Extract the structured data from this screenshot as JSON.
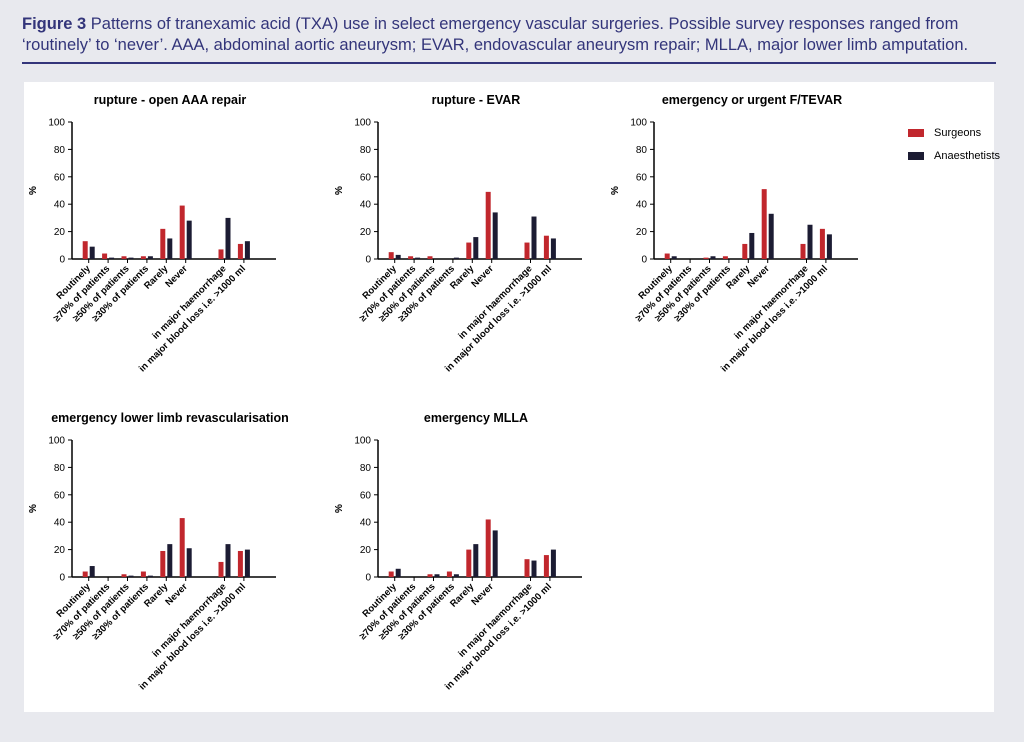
{
  "caption": {
    "figure_label": "Figure 3",
    "text": "Patterns of tranexamic acid (TXA) use in select emergency vascular surgeries. Possible survey responses ranged from ‘routinely’ to ‘never’. AAA, abdominal aortic aneurysm; EVAR, endovascular aneurysm repair; MLLA, major lower limb amputation."
  },
  "legend": [
    {
      "label": "Surgeons",
      "color": "#c1272d"
    },
    {
      "label": "Anaesthetists",
      "color": "#1c1c33"
    }
  ],
  "chart_data": [
    {
      "type": "bar",
      "title": "rupture - open AAA repair",
      "ylabel": "%",
      "ylim": [
        0,
        100
      ],
      "yticks": [
        0,
        20,
        40,
        60,
        80,
        100
      ],
      "categories": [
        "Routinely",
        "≥70% of patients",
        "≥50% of patients",
        "≥30% of patients",
        "Rarely",
        "Never",
        "",
        "in major haemorrhage",
        "in major blood loss i.e. >1000 ml"
      ],
      "series": [
        {
          "name": "Surgeons",
          "values": [
            13,
            4,
            2,
            2,
            22,
            39,
            null,
            7,
            11
          ]
        },
        {
          "name": "Anaesthetists",
          "values": [
            9,
            1,
            1,
            2,
            15,
            28,
            null,
            30,
            13
          ]
        }
      ]
    },
    {
      "type": "bar",
      "title": "rupture - EVAR",
      "ylabel": "%",
      "ylim": [
        0,
        100
      ],
      "yticks": [
        0,
        20,
        40,
        60,
        80,
        100
      ],
      "categories": [
        "Routinely",
        "≥70% of patients",
        "≥50% of patients",
        "≥30% of patients",
        "Rarely",
        "Never",
        "",
        "in major haemorrhage",
        "in major blood loss i.e. >1000 ml"
      ],
      "series": [
        {
          "name": "Surgeons",
          "values": [
            5,
            2,
            2,
            0,
            12,
            49,
            null,
            12,
            17
          ]
        },
        {
          "name": "Anaesthetists",
          "values": [
            3,
            1,
            0,
            1,
            16,
            34,
            null,
            31,
            15
          ]
        }
      ]
    },
    {
      "type": "bar",
      "title": "emergency or urgent F/TEVAR",
      "ylabel": "%",
      "ylim": [
        0,
        100
      ],
      "yticks": [
        0,
        20,
        40,
        60,
        80,
        100
      ],
      "categories": [
        "Routinely",
        "≥70% of patients",
        "≥50% of patients",
        "≥30% of patients",
        "Rarely",
        "Never",
        "",
        "in major haemorrhage",
        "in major blood loss i.e. >1000 ml"
      ],
      "series": [
        {
          "name": "Surgeons",
          "values": [
            4,
            0,
            1,
            2,
            11,
            51,
            null,
            11,
            22
          ]
        },
        {
          "name": "Anaesthetists",
          "values": [
            2,
            0,
            2,
            0,
            19,
            33,
            null,
            25,
            18
          ]
        }
      ]
    },
    {
      "type": "bar",
      "title": "emergency lower limb revascularisation",
      "ylabel": "%",
      "ylim": [
        0,
        100
      ],
      "yticks": [
        0,
        20,
        40,
        60,
        80,
        100
      ],
      "categories": [
        "Routinely",
        "≥70% of patients",
        "≥50% of patients",
        "≥30% of patients",
        "Rarely",
        "Never",
        "",
        "in major haemorrhage",
        "in major blood loss i.e. >1000 ml"
      ],
      "series": [
        {
          "name": "Surgeons",
          "values": [
            4,
            0,
            2,
            4,
            19,
            43,
            null,
            11,
            19
          ]
        },
        {
          "name": "Anaesthetists",
          "values": [
            8,
            0,
            1,
            1,
            24,
            21,
            null,
            24,
            20
          ]
        }
      ]
    },
    {
      "type": "bar",
      "title": "emergency MLLA",
      "ylabel": "%",
      "ylim": [
        0,
        100
      ],
      "yticks": [
        0,
        20,
        40,
        60,
        80,
        100
      ],
      "categories": [
        "Routinely",
        "≥70% of patients",
        "≥50% of patients",
        "≥30% of patients",
        "Rarely",
        "Never",
        "",
        "in major haemorrhage",
        "in major blood loss i.e. >1000 ml"
      ],
      "series": [
        {
          "name": "Surgeons",
          "values": [
            4,
            0,
            2,
            4,
            20,
            42,
            null,
            13,
            16
          ]
        },
        {
          "name": "Anaesthetists",
          "values": [
            6,
            0,
            2,
            2,
            24,
            34,
            null,
            12,
            20
          ]
        }
      ]
    }
  ]
}
